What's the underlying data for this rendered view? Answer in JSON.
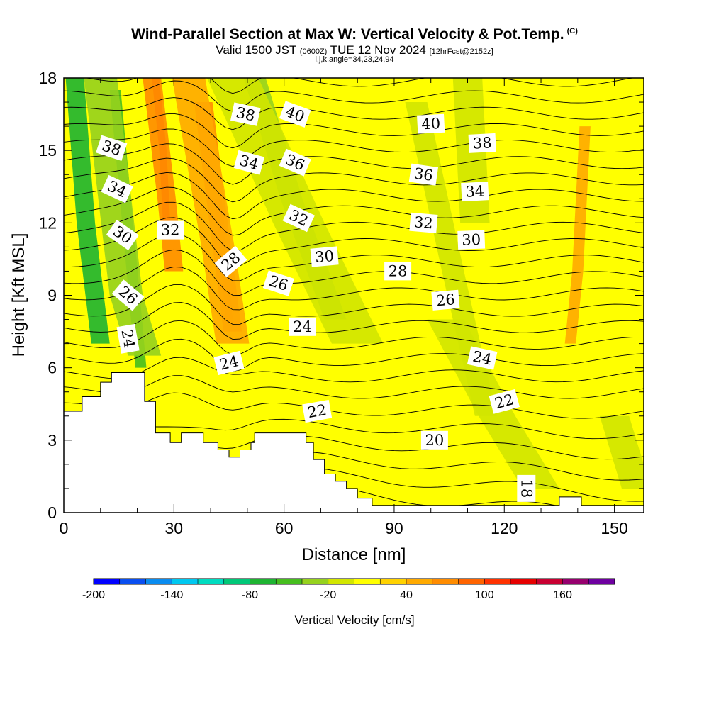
{
  "header": {
    "title": "Wind-Parallel Section at Max W: Vertical Velocity & Pot.Temp.",
    "copyright": "(C)",
    "sub_prefix": "Valid 1500 JST",
    "sub_utc": "(0600Z)",
    "sub_date": "TUE 12 Nov 2024",
    "sub_run": "[12hrFcst@2152z]",
    "params": "i,j,k,angle=34,23,24,94"
  },
  "chart_data": {
    "type": "heatmap",
    "xlabel": "Distance [nm]",
    "ylabel": "Height [Kft MSL]",
    "xlim": [
      0,
      158
    ],
    "ylim": [
      0,
      18
    ],
    "x_ticks": [
      0,
      30,
      60,
      90,
      120,
      150
    ],
    "y_ticks": [
      0,
      3,
      6,
      9,
      12,
      15,
      18
    ],
    "grid": false,
    "colorbar": {
      "title": "Vertical Velocity [cm/s]",
      "location": "bottom",
      "range": [
        -200,
        200
      ],
      "step": 20,
      "tick_values": [
        -200,
        -140,
        -80,
        -20,
        40,
        100,
        160
      ],
      "colors": [
        "#0000ff",
        "#0a4ef0",
        "#0a8cf0",
        "#00c8f0",
        "#00dcc0",
        "#00c878",
        "#1eb432",
        "#46be1e",
        "#96d21e",
        "#d2e600",
        "#ffff00",
        "#ffd200",
        "#ffaa00",
        "#ff8c00",
        "#ff6400",
        "#ff3200",
        "#e60000",
        "#c80032",
        "#96006e",
        "#6e00a0"
      ]
    },
    "background_level": "0 to 20",
    "terrain_profile": [
      [
        0,
        4.2
      ],
      [
        5,
        4.2
      ],
      [
        5,
        4.8
      ],
      [
        10,
        4.8
      ],
      [
        10,
        5.4
      ],
      [
        13,
        5.4
      ],
      [
        13,
        5.8
      ],
      [
        22,
        5.8
      ],
      [
        22,
        4.6
      ],
      [
        25,
        4.6
      ],
      [
        25,
        3.3
      ],
      [
        29,
        3.3
      ],
      [
        29,
        2.9
      ],
      [
        32,
        2.9
      ],
      [
        32,
        3.3
      ],
      [
        38,
        3.3
      ],
      [
        38,
        2.9
      ],
      [
        42,
        2.9
      ],
      [
        42,
        2.6
      ],
      [
        45,
        2.6
      ],
      [
        45,
        2.3
      ],
      [
        48,
        2.3
      ],
      [
        48,
        2.6
      ],
      [
        51,
        2.6
      ],
      [
        51,
        2.9
      ],
      [
        52,
        2.9
      ],
      [
        52,
        3.3
      ],
      [
        66,
        3.3
      ],
      [
        66,
        2.9
      ],
      [
        68,
        2.9
      ],
      [
        68,
        2.2
      ],
      [
        71,
        2.2
      ],
      [
        71,
        1.6
      ],
      [
        74,
        1.6
      ],
      [
        74,
        1.3
      ],
      [
        77,
        1.3
      ],
      [
        77,
        1.0
      ],
      [
        80,
        1.0
      ],
      [
        80,
        0.6
      ],
      [
        84,
        0.6
      ],
      [
        84,
        0.3
      ],
      [
        135,
        0.3
      ],
      [
        135,
        0.65
      ],
      [
        141,
        0.65
      ],
      [
        141,
        0.3
      ],
      [
        158,
        0.3
      ]
    ],
    "shaded_regions": [
      {
        "level": "-80",
        "x_center_path": [
          [
            3,
            18
          ],
          [
            6,
            12
          ],
          [
            10,
            7
          ]
        ],
        "width": 5
      },
      {
        "level": "-60",
        "x_center_path": [
          [
            14,
            17.5
          ],
          [
            18,
            11
          ],
          [
            21,
            6
          ]
        ],
        "width": 3
      },
      {
        "level": "-40",
        "x_center_path": [
          [
            10,
            18
          ],
          [
            17,
            9
          ],
          [
            22,
            6.5
          ]
        ],
        "width": 9
      },
      {
        "level": "80",
        "x_center_path": [
          [
            25,
            18
          ],
          [
            27,
            15
          ],
          [
            28,
            12
          ]
        ],
        "width": 2
      },
      {
        "level": "60",
        "x_center_path": [
          [
            24,
            18
          ],
          [
            28,
            13
          ],
          [
            30,
            10
          ]
        ],
        "width": 5
      },
      {
        "level": "80",
        "x_center_path": [
          [
            42,
            13
          ],
          [
            44,
            10
          ],
          [
            45,
            8
          ]
        ],
        "width": 2
      },
      {
        "level": "60",
        "x_center_path": [
          [
            38,
            17
          ],
          [
            43,
            11
          ],
          [
            46,
            7.5
          ]
        ],
        "width": 5
      },
      {
        "level": "40",
        "x_center_path": [
          [
            34,
            18
          ],
          [
            42,
            11
          ],
          [
            46,
            7
          ]
        ],
        "width": 9
      },
      {
        "level": "-40",
        "x_center_path": [
          [
            52,
            18
          ],
          [
            62,
            13
          ],
          [
            74,
            8
          ]
        ],
        "width": 6
      },
      {
        "level": "-20",
        "x_center_path": [
          [
            46,
            18
          ],
          [
            64,
            12
          ],
          [
            80,
            7
          ]
        ],
        "width": 14
      },
      {
        "level": "-20",
        "x_center_path": [
          [
            96,
            17
          ],
          [
            106,
            10
          ],
          [
            115,
            4
          ]
        ],
        "width": 6
      },
      {
        "level": "-20",
        "x_center_path": [
          [
            104,
            8
          ],
          [
            118,
            4
          ],
          [
            130,
            1
          ]
        ],
        "width": 10
      },
      {
        "level": "-20",
        "x_center_path": [
          [
            100,
            18
          ],
          [
            110,
            18
          ],
          [
            112,
            12
          ]
        ],
        "width": 8
      },
      {
        "level": "40",
        "x_center_path": [
          [
            142,
            16
          ],
          [
            140,
            10
          ],
          [
            138,
            7
          ]
        ],
        "width": 3
      },
      {
        "level": "-20",
        "x_center_path": [
          [
            150,
            4
          ],
          [
            156,
            1
          ]
        ],
        "width": 8
      }
    ],
    "isentropes": {
      "label": "Potential Temperature",
      "labels": [
        {
          "text": "38",
          "x": 13,
          "y": 15.1,
          "angle": 18
        },
        {
          "text": "34",
          "x": 14.5,
          "y": 13.4,
          "angle": 25
        },
        {
          "text": "30",
          "x": 16,
          "y": 11.5,
          "angle": 35
        },
        {
          "text": "26",
          "x": 17.5,
          "y": 9.0,
          "angle": 40
        },
        {
          "text": "24",
          "x": 17.5,
          "y": 7.2,
          "angle": 80
        },
        {
          "text": "32",
          "x": 29,
          "y": 11.7,
          "angle": 0
        },
        {
          "text": "28",
          "x": 45.5,
          "y": 10.4,
          "angle": -40
        },
        {
          "text": "38",
          "x": 49.5,
          "y": 16.5,
          "angle": 12
        },
        {
          "text": "34",
          "x": 50.5,
          "y": 14.5,
          "angle": 15
        },
        {
          "text": "24",
          "x": 45,
          "y": 6.2,
          "angle": -14
        },
        {
          "text": "26",
          "x": 58.5,
          "y": 9.5,
          "angle": 18
        },
        {
          "text": "40",
          "x": 63,
          "y": 16.5,
          "angle": 20
        },
        {
          "text": "36",
          "x": 63,
          "y": 14.5,
          "angle": 23
        },
        {
          "text": "32",
          "x": 64,
          "y": 12.2,
          "angle": 25
        },
        {
          "text": "30",
          "x": 71,
          "y": 10.6,
          "angle": -5
        },
        {
          "text": "24",
          "x": 65,
          "y": 7.7,
          "angle": 0
        },
        {
          "text": "22",
          "x": 69,
          "y": 4.2,
          "angle": -10
        },
        {
          "text": "28",
          "x": 91,
          "y": 10.0,
          "angle": 0
        },
        {
          "text": "40",
          "x": 100,
          "y": 16.1,
          "angle": -3
        },
        {
          "text": "36",
          "x": 98,
          "y": 14.0,
          "angle": 8
        },
        {
          "text": "32",
          "x": 98,
          "y": 12.0,
          "angle": 5
        },
        {
          "text": "26",
          "x": 104,
          "y": 8.8,
          "angle": -5
        },
        {
          "text": "20",
          "x": 101,
          "y": 3.0,
          "angle": 0
        },
        {
          "text": "38",
          "x": 114,
          "y": 15.3,
          "angle": -3
        },
        {
          "text": "34",
          "x": 112,
          "y": 13.3,
          "angle": -3
        },
        {
          "text": "30",
          "x": 111,
          "y": 11.3,
          "angle": -2
        },
        {
          "text": "24",
          "x": 114,
          "y": 6.4,
          "angle": 12
        },
        {
          "text": "22",
          "x": 120,
          "y": 4.6,
          "angle": -15
        },
        {
          "text": "18",
          "x": 126,
          "y": 1.0,
          "angle": 90
        }
      ]
    }
  }
}
